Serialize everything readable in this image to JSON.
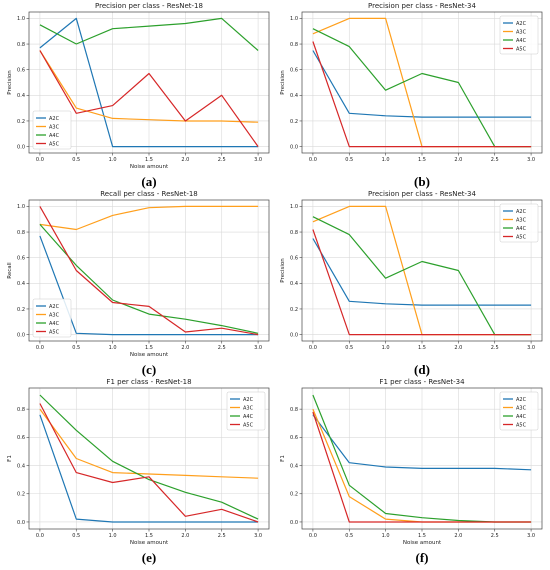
{
  "chart_data": [
    {
      "type": "line",
      "caption": "(a)",
      "title": "Precision per class - ResNet-18",
      "xlabel": "Noise amount",
      "ylabel": "Precision",
      "x": [
        0.0,
        0.5,
        1.0,
        1.5,
        2.0,
        2.5,
        3.0
      ],
      "xticks": [
        "0.0",
        "0.5",
        "1.0",
        "1.5",
        "2.0",
        "2.5",
        "3.0"
      ],
      "yticks": [
        "0.0",
        "0.2",
        "0.4",
        "0.6",
        "0.8",
        "1.0"
      ],
      "xlim": [
        -0.15,
        3.15
      ],
      "ylim": [
        -0.05,
        1.05
      ],
      "grid": true,
      "legend": "bottom-left",
      "series": [
        {
          "name": "A2C",
          "color": "#1f77b4",
          "values": [
            0.77,
            1.0,
            0.0,
            0.0,
            0.0,
            0.0,
            0.0
          ]
        },
        {
          "name": "A3C",
          "color": "#ff9f1c",
          "values": [
            0.75,
            0.3,
            0.22,
            0.21,
            0.2,
            0.2,
            0.19
          ]
        },
        {
          "name": "A4C",
          "color": "#2ca02c",
          "values": [
            0.95,
            0.8,
            0.92,
            0.94,
            0.96,
            1.0,
            0.75
          ]
        },
        {
          "name": "A5C",
          "color": "#d62728",
          "values": [
            0.75,
            0.26,
            0.32,
            0.57,
            0.2,
            0.4,
            0.0
          ]
        }
      ]
    },
    {
      "type": "line",
      "caption": "(b)",
      "title": "Precision per class - ResNet-34",
      "xlabel": "",
      "ylabel": "Precision",
      "x": [
        0.0,
        0.5,
        1.0,
        1.5,
        2.0,
        2.5,
        3.0
      ],
      "xticks": [
        "0.0",
        "0.5",
        "1.0",
        "1.5",
        "2.0",
        "2.5",
        "3.0"
      ],
      "yticks": [
        "0.0",
        "0.2",
        "0.4",
        "0.6",
        "0.8",
        "1.0"
      ],
      "xlim": [
        -0.15,
        3.15
      ],
      "ylim": [
        -0.05,
        1.05
      ],
      "grid": true,
      "legend": "top-right",
      "series": [
        {
          "name": "A2C",
          "color": "#1f77b4",
          "values": [
            0.75,
            0.26,
            0.24,
            0.23,
            0.23,
            0.23,
            0.23
          ]
        },
        {
          "name": "A3C",
          "color": "#ff9f1c",
          "values": [
            0.88,
            1.0,
            1.0,
            0.0,
            0.0,
            0.0,
            0.0
          ]
        },
        {
          "name": "A4C",
          "color": "#2ca02c",
          "values": [
            0.92,
            0.78,
            0.44,
            0.57,
            0.5,
            0.0,
            0.0
          ]
        },
        {
          "name": "A5C",
          "color": "#d62728",
          "values": [
            0.82,
            0.0,
            0.0,
            0.0,
            0.0,
            0.0,
            0.0
          ]
        }
      ]
    },
    {
      "type": "line",
      "caption": "(c)",
      "title": "Recall per class - ResNet-18",
      "xlabel": "Noise amount",
      "ylabel": "Recall",
      "x": [
        0.0,
        0.5,
        1.0,
        1.5,
        2.0,
        2.5,
        3.0
      ],
      "xticks": [
        "0.0",
        "0.5",
        "1.0",
        "1.5",
        "2.0",
        "2.5",
        "3.0"
      ],
      "yticks": [
        "0.0",
        "0.2",
        "0.4",
        "0.6",
        "0.8",
        "1.0"
      ],
      "xlim": [
        -0.15,
        3.15
      ],
      "ylim": [
        -0.05,
        1.05
      ],
      "grid": true,
      "legend": "bottom-left",
      "series": [
        {
          "name": "A2C",
          "color": "#1f77b4",
          "values": [
            0.77,
            0.01,
            0.0,
            0.0,
            0.0,
            0.0,
            0.0
          ]
        },
        {
          "name": "A3C",
          "color": "#ff9f1c",
          "values": [
            0.86,
            0.82,
            0.93,
            0.99,
            1.0,
            1.0,
            1.0
          ]
        },
        {
          "name": "A4C",
          "color": "#2ca02c",
          "values": [
            0.86,
            0.54,
            0.27,
            0.16,
            0.12,
            0.07,
            0.01
          ]
        },
        {
          "name": "A5C",
          "color": "#d62728",
          "values": [
            1.0,
            0.5,
            0.25,
            0.22,
            0.02,
            0.05,
            0.0
          ]
        }
      ]
    },
    {
      "type": "line",
      "caption": "(d)",
      "title": "Precision per class - ResNet-34",
      "xlabel": "",
      "ylabel": "Precision",
      "x": [
        0.0,
        0.5,
        1.0,
        1.5,
        2.0,
        2.5,
        3.0
      ],
      "xticks": [
        "0.0",
        "0.5",
        "1.0",
        "1.5",
        "2.0",
        "2.5",
        "3.0"
      ],
      "yticks": [
        "0.0",
        "0.2",
        "0.4",
        "0.6",
        "0.8",
        "1.0"
      ],
      "xlim": [
        -0.15,
        3.15
      ],
      "ylim": [
        -0.05,
        1.05
      ],
      "grid": true,
      "legend": "top-right",
      "series": [
        {
          "name": "A2C",
          "color": "#1f77b4",
          "values": [
            0.75,
            0.26,
            0.24,
            0.23,
            0.23,
            0.23,
            0.23
          ]
        },
        {
          "name": "A3C",
          "color": "#ff9f1c",
          "values": [
            0.88,
            1.0,
            1.0,
            0.0,
            0.0,
            0.0,
            0.0
          ]
        },
        {
          "name": "A4C",
          "color": "#2ca02c",
          "values": [
            0.92,
            0.78,
            0.44,
            0.57,
            0.5,
            0.0,
            0.0
          ]
        },
        {
          "name": "A5C",
          "color": "#d62728",
          "values": [
            0.82,
            0.0,
            0.0,
            0.0,
            0.0,
            0.0,
            0.0
          ]
        }
      ]
    },
    {
      "type": "line",
      "caption": "(e)",
      "title": "F1 per class - ResNet-18",
      "xlabel": "Noise amount",
      "ylabel": "F1",
      "x": [
        0.0,
        0.5,
        1.0,
        1.5,
        2.0,
        2.5,
        3.0
      ],
      "xticks": [
        "0.0",
        "0.5",
        "1.0",
        "1.5",
        "2.0",
        "2.5",
        "3.0"
      ],
      "yticks": [
        "0.0",
        "0.2",
        "0.4",
        "0.6",
        "0.8"
      ],
      "xlim": [
        -0.15,
        3.15
      ],
      "ylim": [
        -0.05,
        0.95
      ],
      "grid": true,
      "legend": "top-right",
      "series": [
        {
          "name": "A2C",
          "color": "#1f77b4",
          "values": [
            0.76,
            0.02,
            0.0,
            0.0,
            0.0,
            0.0,
            0.0
          ]
        },
        {
          "name": "A3C",
          "color": "#ff9f1c",
          "values": [
            0.8,
            0.45,
            0.35,
            0.34,
            0.33,
            0.32,
            0.31
          ]
        },
        {
          "name": "A4C",
          "color": "#2ca02c",
          "values": [
            0.9,
            0.65,
            0.43,
            0.3,
            0.21,
            0.14,
            0.02
          ]
        },
        {
          "name": "A5C",
          "color": "#d62728",
          "values": [
            0.84,
            0.35,
            0.28,
            0.32,
            0.04,
            0.09,
            0.0
          ]
        }
      ]
    },
    {
      "type": "line",
      "caption": "(f)",
      "title": "F1 per class - ResNet-34",
      "xlabel": "Noise amount",
      "ylabel": "F1",
      "x": [
        0.0,
        0.5,
        1.0,
        1.5,
        2.0,
        2.5,
        3.0
      ],
      "xticks": [
        "0.0",
        "0.5",
        "1.0",
        "1.5",
        "2.0",
        "2.5",
        "3.0"
      ],
      "yticks": [
        "0.0",
        "0.2",
        "0.4",
        "0.6",
        "0.8"
      ],
      "xlim": [
        -0.15,
        3.15
      ],
      "ylim": [
        -0.05,
        0.95
      ],
      "grid": true,
      "legend": "top-right",
      "series": [
        {
          "name": "A2C",
          "color": "#1f77b4",
          "values": [
            0.76,
            0.42,
            0.39,
            0.38,
            0.38,
            0.38,
            0.37
          ]
        },
        {
          "name": "A3C",
          "color": "#ff9f1c",
          "values": [
            0.8,
            0.18,
            0.02,
            0.0,
            0.0,
            0.0,
            0.0
          ]
        },
        {
          "name": "A4C",
          "color": "#2ca02c",
          "values": [
            0.9,
            0.26,
            0.06,
            0.03,
            0.01,
            0.0,
            0.0
          ]
        },
        {
          "name": "A5C",
          "color": "#d62728",
          "values": [
            0.78,
            0.0,
            0.0,
            0.0,
            0.0,
            0.0,
            0.0
          ]
        }
      ]
    }
  ]
}
